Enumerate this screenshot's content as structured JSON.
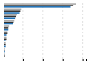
{
  "chart_data": {
    "type": "bar",
    "orientation": "horizontal",
    "categories": [
      null,
      null,
      null,
      null,
      null,
      null,
      null,
      null,
      null,
      null
    ],
    "series": [
      {
        "color": "#aaaaaa",
        "values": [
          92,
          22,
          17,
          14,
          7,
          5,
          4,
          3,
          2,
          2
        ]
      },
      {
        "color": "#333333",
        "values": [
          88,
          21,
          16,
          13,
          6,
          5,
          4,
          3,
          2,
          2
        ]
      },
      {
        "color": "#2171b5",
        "values": [
          85,
          20,
          15,
          12,
          6,
          4,
          3,
          3,
          2,
          1
        ]
      }
    ],
    "xlim": [
      0,
      105
    ],
    "xticks": [
      25,
      50,
      75,
      100
    ],
    "grid": true,
    "tick_labels": false
  }
}
